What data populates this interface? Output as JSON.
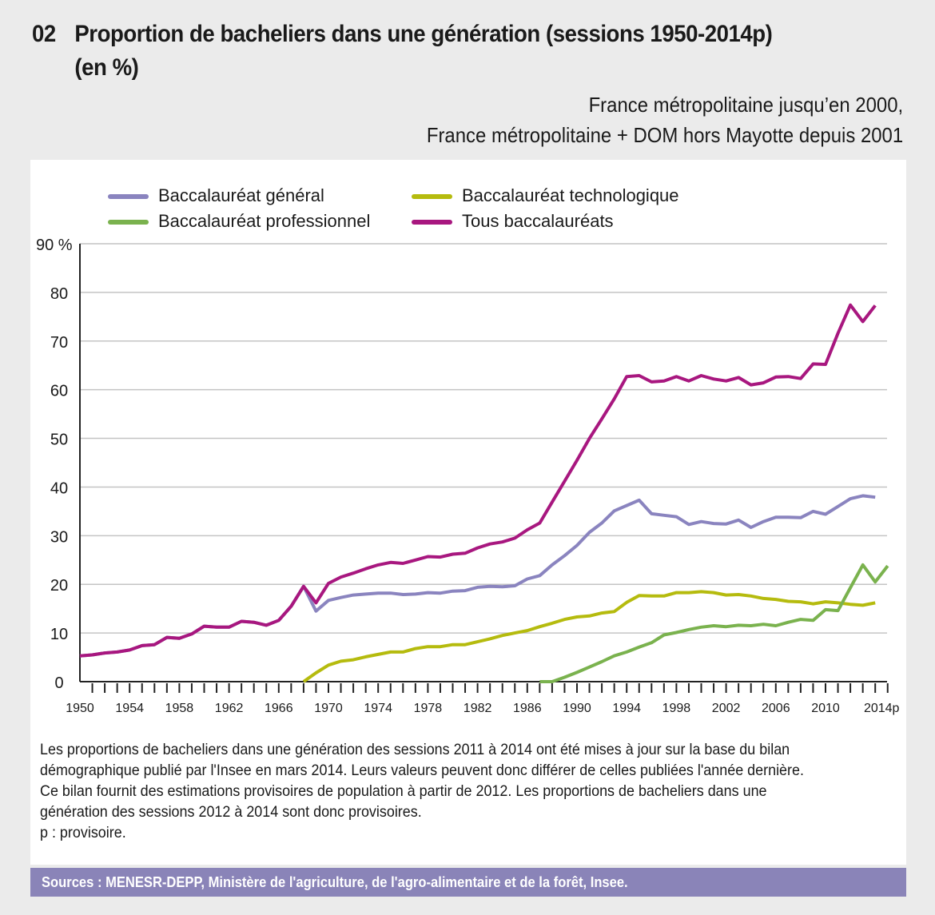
{
  "header": {
    "number": "02",
    "title_line1": "Proportion de bacheliers dans une génération (sessions 1950-2014p)",
    "title_line2": "(en %)",
    "subtitle_line1": "France métropolitaine jusqu’en 2000,",
    "subtitle_line2": "France métropolitaine + DOM hors Mayotte depuis 2001"
  },
  "notes": [
    "Les proportions de bacheliers dans une génération des sessions 2011 à 2014 ont été mises à jour sur la base du bilan",
    "démographique publié par l'Insee en mars 2014. Leurs valeurs peuvent donc différer de celles publiées l'année dernière.",
    "Ce bilan fournit des estimations provisoires de population à partir de 2012. Les proportions de bacheliers dans une",
    "génération des sessions 2012 à 2014 sont donc provisoires.",
    "p : provisoire."
  ],
  "sources": "Sources : MENESR-DEPP, Ministère de l'agriculture, de l'agro-alimentaire et de la forêt, Insee.",
  "chart_data": {
    "type": "line",
    "title": "Proportion de bacheliers dans une génération (sessions 1950-2014p) (en %)",
    "xlabel": "",
    "ylabel": "%",
    "xlim": [
      1950,
      2015
    ],
    "ylim": [
      0,
      90
    ],
    "yticks": [
      0,
      10,
      20,
      30,
      40,
      50,
      60,
      70,
      80,
      90
    ],
    "ytick_labels": [
      "0",
      "10",
      "20",
      "30",
      "40",
      "50",
      "60",
      "70",
      "80",
      "90 %"
    ],
    "xtick_labels": [
      {
        "year": 1950,
        "label": "1950"
      },
      {
        "year": 1954,
        "label": "1954"
      },
      {
        "year": 1958,
        "label": "1958"
      },
      {
        "year": 1962,
        "label": "1962"
      },
      {
        "year": 1966,
        "label": "1966"
      },
      {
        "year": 1970,
        "label": "1970"
      },
      {
        "year": 1974,
        "label": "1974"
      },
      {
        "year": 1978,
        "label": "1978"
      },
      {
        "year": 1982,
        "label": "1982"
      },
      {
        "year": 1986,
        "label": "1986"
      },
      {
        "year": 1990,
        "label": "1990"
      },
      {
        "year": 1994,
        "label": "1994"
      },
      {
        "year": 1998,
        "label": "1998"
      },
      {
        "year": 2002,
        "label": "2002"
      },
      {
        "year": 2006,
        "label": "2006"
      },
      {
        "year": 2010,
        "label": "2010"
      },
      {
        "year": 2014,
        "label": "2014p"
      }
    ],
    "grid": true,
    "legend_position": "top-left",
    "series": [
      {
        "name": "Baccalauréat général",
        "color": "#8a84bf",
        "start_year": 1950,
        "values": [
          5.3,
          5.5,
          5.9,
          6.1,
          6.5,
          7.4,
          7.6,
          9.1,
          8.9,
          9.8,
          11.4,
          11.2,
          11.2,
          12.4,
          12.2,
          11.6,
          12.6,
          15.5,
          19.6,
          14.5,
          16.7,
          17.3,
          17.8,
          18.0,
          18.2,
          18.2,
          17.9,
          18.0,
          18.3,
          18.2,
          18.6,
          18.7,
          19.4,
          19.6,
          19.5,
          19.7,
          21.1,
          21.8,
          24.0,
          25.9,
          28.0,
          30.7,
          32.6,
          35.1,
          36.2,
          37.3,
          34.5,
          34.2,
          33.9,
          32.3,
          32.9,
          32.5,
          32.4,
          33.2,
          31.7,
          32.9,
          33.8,
          33.8,
          33.7,
          35.0,
          34.4,
          36.0,
          37.6,
          38.2,
          37.9
        ]
      },
      {
        "name": "Baccalauréat technologique",
        "color": "#b5bb0e",
        "start_year": 1968,
        "values": [
          0.0,
          1.8,
          3.4,
          4.2,
          4.5,
          5.1,
          5.6,
          6.1,
          6.1,
          6.8,
          7.2,
          7.2,
          7.6,
          7.6,
          8.2,
          8.8,
          9.5,
          10.0,
          10.5,
          11.3,
          12.0,
          12.8,
          13.3,
          13.5,
          14.1,
          14.4,
          16.3,
          17.7,
          17.6,
          17.6,
          18.3,
          18.3,
          18.5,
          18.3,
          17.8,
          17.9,
          17.6,
          17.1,
          16.9,
          16.5,
          16.4,
          16.0,
          16.4,
          16.2,
          15.9,
          15.7,
          16.2
        ]
      },
      {
        "name": "Baccalauréat professionnel",
        "color": "#7ab24e",
        "start_year": 1987,
        "values": [
          0.0,
          0.0,
          0.9,
          1.9,
          3.0,
          4.1,
          5.3,
          6.1,
          7.1,
          8.0,
          9.6,
          10.1,
          10.7,
          11.2,
          11.5,
          11.3,
          11.6,
          11.5,
          11.8,
          11.5,
          12.2,
          12.8,
          12.6,
          14.8,
          14.6,
          19.3,
          24.0,
          20.5,
          23.8
        ]
      },
      {
        "name": "Tous baccalauréats",
        "color": "#a8177f",
        "start_year": 1950,
        "values": [
          5.3,
          5.5,
          5.9,
          6.1,
          6.5,
          7.4,
          7.6,
          9.1,
          8.9,
          9.8,
          11.4,
          11.2,
          11.2,
          12.4,
          12.2,
          11.6,
          12.6,
          15.5,
          19.6,
          16.2,
          20.2,
          21.5,
          22.3,
          23.2,
          24.0,
          24.5,
          24.3,
          25.0,
          25.7,
          25.6,
          26.2,
          26.4,
          27.5,
          28.3,
          28.7,
          29.5,
          31.2,
          32.6,
          36.9,
          41.2,
          45.5,
          50.0,
          54.0,
          58.1,
          62.7,
          62.9,
          61.6,
          61.8,
          62.7,
          61.8,
          62.9,
          62.2,
          61.8,
          62.5,
          61.0,
          61.4,
          62.6,
          62.7,
          62.3,
          65.3,
          65.2,
          71.6,
          77.4,
          74.0,
          77.3
        ]
      }
    ]
  }
}
